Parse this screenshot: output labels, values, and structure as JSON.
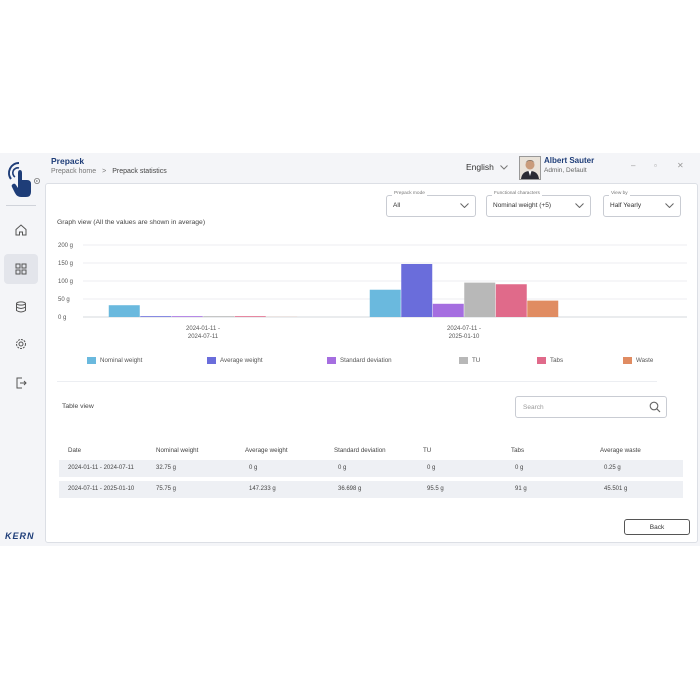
{
  "header": {
    "title": "Prepack",
    "breadcrumb": [
      "Prepack home",
      "Prepack statistics"
    ],
    "language": "English",
    "user": {
      "name": "Albert Sauter",
      "role": "Admin, Default"
    }
  },
  "brand": {
    "logo_text": "KERN",
    "accent": "#1e3d78"
  },
  "sidebar": {
    "items": [
      {
        "icon": "home-icon"
      },
      {
        "icon": "dashboard-grid-icon",
        "active": true
      },
      {
        "icon": "database-icon"
      },
      {
        "icon": "settings-gear-icon"
      },
      {
        "icon": "logout-icon"
      }
    ]
  },
  "filters": {
    "prepack_mode": {
      "label": "Prepack mode",
      "value": "All"
    },
    "functional_characters": {
      "label": "Functional characters",
      "value": "Nominal weight (+5)"
    },
    "view_by": {
      "label": "View by",
      "value": "Half Yearly"
    }
  },
  "graph": {
    "title": "Graph view (All the values are shown in average)"
  },
  "chart_data": {
    "type": "bar",
    "categories": [
      "2024-01-11 - 2024-07-11",
      "2024-07-11 - 2025-01-10"
    ],
    "category_lines": [
      [
        "2024-01-11 -",
        "2024-07-11"
      ],
      [
        "2024-07-11 -",
        "2025-01-10"
      ]
    ],
    "yticks": [
      "0 g",
      "50 g",
      "100 g",
      "150 g",
      "200 g"
    ],
    "ylim": [
      0,
      200
    ],
    "grid": true,
    "legend_position": "bottom",
    "series": [
      {
        "name": "Nominal weight",
        "color": "#6ab9de",
        "values": [
          32.75,
          75.75
        ]
      },
      {
        "name": "Average weight",
        "color": "#6a6ddb",
        "values": [
          0,
          147.233
        ]
      },
      {
        "name": "Standard deviation",
        "color": "#a56ee0",
        "values": [
          0,
          36.698
        ]
      },
      {
        "name": "TU",
        "color": "#b8b8b8",
        "values": [
          0,
          95.5
        ]
      },
      {
        "name": "Tabs",
        "color": "#e06a8a",
        "values": [
          0,
          91
        ]
      },
      {
        "name": "Waste",
        "color": "#e08c62",
        "values": [
          0.25,
          45.501
        ]
      }
    ]
  },
  "table": {
    "title": "Table view",
    "search_placeholder": "Search",
    "columns": [
      "Date",
      "Nominal weight",
      "Average weight",
      "Standard deviation",
      "TU",
      "Tabs",
      "Average waste"
    ],
    "rows": [
      [
        "2024-01-11 - 2024-07-11",
        "32.75 g",
        "0 g",
        "0 g",
        "0 g",
        "0 g",
        "0.25 g"
      ],
      [
        "2024-07-11 - 2025-01-10",
        "75.75 g",
        "147.233 g",
        "36.698 g",
        "95.5 g",
        "91 g",
        "45.501 g"
      ]
    ]
  },
  "footer": {
    "back_label": "Back"
  }
}
